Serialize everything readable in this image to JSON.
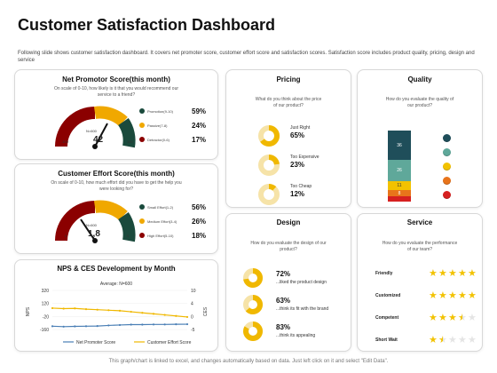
{
  "page": {
    "title": "Customer Satisfaction Dashboard",
    "description": "Following slide shows customer satisfaction dashboard. It covers net promoter score, customer effort score and satisfaction scores. Satisfaction score includes product quality, pricing, design and service",
    "footer": "This graph/chart is linked to excel, and changes automatically based on data. Just left click on it and select \"Edit Data\"."
  },
  "nps": {
    "title": "Net Promotor Score(this month)",
    "question": "On scale of 0-10, how likely is it that you would recommend our service to a friend?",
    "n_label": "N=600",
    "value": "42",
    "min": "-100",
    "max": "100",
    "legend": [
      {
        "label": "Promotion(9-10)",
        "pct": "59%",
        "color": "#1a4a3c"
      },
      {
        "label": "Passive(7-8)",
        "pct": "24%",
        "color": "#f0a800"
      },
      {
        "label": "Detractor(0-6)",
        "pct": "17%",
        "color": "#8b0000"
      }
    ]
  },
  "ces": {
    "title": "Customer Effort Score(this month)",
    "question": "On scale of 0-10, how much effort did you have to get the help you were looking for?",
    "n_label": "N=600",
    "value": "1,8",
    "min": "0",
    "max": "5",
    "legend": [
      {
        "label": "Small Effort(1-2)",
        "pct": "56%",
        "color": "#1a4a3c"
      },
      {
        "label": "Medium Effort(3-4)",
        "pct": "26%",
        "color": "#f0a800"
      },
      {
        "label": "High Effort(5-10)",
        "pct": "18%",
        "color": "#8b0000"
      }
    ]
  },
  "dev": {
    "title": "NPS & CES Development by Month",
    "average": "Average: N=600",
    "left_axis_label": "NPS",
    "right_axis_label": "CES",
    "left_ticks": [
      "320",
      "120",
      "-20",
      "-160"
    ],
    "right_ticks": [
      "10",
      "4",
      "0",
      "-5"
    ],
    "legend_nps": "Net Promoter Score",
    "legend_ces": "Customer Effort Score"
  },
  "chart_data": {
    "type": "line",
    "title": "NPS & CES Development by Month",
    "ylabel": "NPS",
    "y2label": "CES",
    "ylim": [
      -160,
      320
    ],
    "y2lim": [
      -5,
      10
    ],
    "series": [
      {
        "name": "Net Promoter Score",
        "axis": "left",
        "values": [
          -120,
          -125,
          -122,
          -120,
          -118,
          -110,
          -105,
          -100,
          -100,
          -98,
          -98,
          -96,
          -95
        ]
      },
      {
        "name": "Customer Effort Score",
        "axis": "right",
        "values": [
          3.2,
          3.0,
          3.1,
          2.8,
          2.6,
          2.4,
          2.2,
          1.8,
          1.4,
          1.0,
          0.6,
          0.2,
          -0.2
        ]
      }
    ]
  },
  "pricing": {
    "title": "Pricing",
    "question": "What do you think about the price of our product?",
    "items": [
      {
        "label": "Just Right",
        "pct": "65%",
        "value": 65
      },
      {
        "label": "Too Expensive",
        "pct": "23%",
        "value": 23
      },
      {
        "label": "Too Cheap",
        "pct": "12%",
        "value": 12
      }
    ]
  },
  "quality": {
    "title": "Quality",
    "question": "How do you evaluate the quality of our product?",
    "segments": [
      {
        "value": "36",
        "color": "#1f4e5a",
        "num": 36
      },
      {
        "value": "26",
        "color": "#5fa89a",
        "num": 26
      },
      {
        "value": "11",
        "color": "#f2c200",
        "num": 11
      },
      {
        "value": "8",
        "color": "#e8741b",
        "num": 8
      },
      {
        "value": "",
        "color": "#d62020",
        "num": 6
      }
    ],
    "face_colors": [
      "#1f4e5a",
      "#5fa89a",
      "#f2c200",
      "#e8741b",
      "#d62020"
    ]
  },
  "design": {
    "title": "Design",
    "question": "How do you evaluate the design of our product?",
    "items": [
      {
        "pct": "72%",
        "label": "...liked the product design",
        "value": 72
      },
      {
        "pct": "63%",
        "label": "...think its fit with the brand",
        "value": 63
      },
      {
        "pct": "83%",
        "label": "...think its appealing",
        "value": 83
      }
    ]
  },
  "service": {
    "title": "Service",
    "question": "How do you evaluate the performance of our team?",
    "ratings": [
      {
        "label": "Friendly",
        "stars": 5
      },
      {
        "label": "Customized",
        "stars": 5
      },
      {
        "label": "Competent",
        "stars": 3.5
      },
      {
        "label": "Short Wait",
        "stars": 1.5
      }
    ],
    "star_color": "#f2c200"
  }
}
